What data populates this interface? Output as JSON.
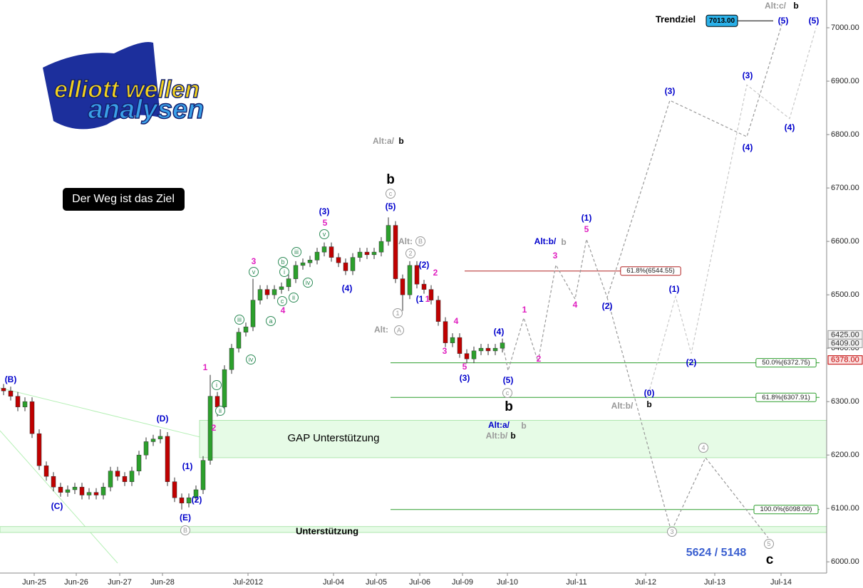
{
  "chart_data": {
    "type": "candlestick",
    "xlim": [
      -0.5,
      115.5
    ],
    "ylim": [
      5979,
      7052
    ],
    "yticks": [
      {
        "value": 6000,
        "label": "6000.00"
      },
      {
        "value": 6100,
        "label": "6100.00"
      },
      {
        "value": 6200,
        "label": "6200.00"
      },
      {
        "value": 6300,
        "label": "6300.00"
      },
      {
        "value": 6400,
        "label": "6400.00"
      },
      {
        "value": 6500,
        "label": "6500.00"
      },
      {
        "value": 6600,
        "label": "6600.00"
      },
      {
        "value": 6700,
        "label": "6700.00"
      },
      {
        "value": 6800,
        "label": "6800.00"
      },
      {
        "value": 6900,
        "label": "6900.00"
      },
      {
        "value": 7000,
        "label": "7000.00"
      }
    ],
    "xticks": [
      {
        "value": 4.3,
        "label": "Jun-25"
      },
      {
        "value": 10.2,
        "label": "Jun-26"
      },
      {
        "value": 16.3,
        "label": "Jun-27"
      },
      {
        "value": 22.3,
        "label": "Jun-28"
      },
      {
        "value": 34.3,
        "label": "Jul-2012"
      },
      {
        "value": 46.3,
        "label": "Jul-04"
      },
      {
        "value": 52.3,
        "label": "Jul-05"
      },
      {
        "value": 58.4,
        "label": "Jul-06"
      },
      {
        "value": 64.4,
        "label": "Jul-09"
      },
      {
        "value": 70.7,
        "label": "Jul-10"
      },
      {
        "value": 80.4,
        "label": "Jul-11"
      },
      {
        "value": 90.1,
        "label": "Jul-12"
      },
      {
        "value": 99.8,
        "label": "Jul-13"
      },
      {
        "value": 109.1,
        "label": "Jul-14"
      }
    ],
    "up_color": "#2ca02c",
    "down_color": "#c00000",
    "candles": [
      [
        6325,
        6333,
        6312,
        6320
      ],
      [
        6320,
        6328,
        6302,
        6310
      ],
      [
        6310,
        6318,
        6282,
        6290
      ],
      [
        6290,
        6308,
        6282,
        6300
      ],
      [
        6300,
        6308,
        6232,
        6240
      ],
      [
        6240,
        6248,
        6172,
        6180
      ],
      [
        6180,
        6188,
        6152,
        6160
      ],
      [
        6160,
        6168,
        6132,
        6140
      ],
      [
        6140,
        6148,
        6122,
        6130
      ],
      [
        6130,
        6143,
        6122,
        6135
      ],
      [
        6135,
        6148,
        6127,
        6140
      ],
      [
        6140,
        6148,
        6117,
        6125
      ],
      [
        6125,
        6138,
        6117,
        6130
      ],
      [
        6130,
        6138,
        6117,
        6125
      ],
      [
        6125,
        6148,
        6117,
        6140
      ],
      [
        6140,
        6178,
        6132,
        6170
      ],
      [
        6170,
        6178,
        6152,
        6160
      ],
      [
        6160,
        6168,
        6142,
        6150
      ],
      [
        6150,
        6178,
        6142,
        6170
      ],
      [
        6170,
        6208,
        6162,
        6200
      ],
      [
        6200,
        6233,
        6192,
        6225
      ],
      [
        6225,
        6238,
        6217,
        6230
      ],
      [
        6230,
        6248,
        6222,
        6235
      ],
      [
        6235,
        6243,
        6142,
        6150
      ],
      [
        6150,
        6158,
        6112,
        6120
      ],
      [
        6120,
        6128,
        6098,
        6110
      ],
      [
        6110,
        6128,
        6102,
        6120
      ],
      [
        6120,
        6143,
        6112,
        6135
      ],
      [
        6135,
        6198,
        6127,
        6190
      ],
      [
        6190,
        6350,
        6182,
        6310
      ],
      [
        6310,
        6318,
        6272,
        6290
      ],
      [
        6290,
        6368,
        6282,
        6360
      ],
      [
        6360,
        6408,
        6352,
        6400
      ],
      [
        6400,
        6438,
        6392,
        6430
      ],
      [
        6430,
        6448,
        6422,
        6440
      ],
      [
        6440,
        6530,
        6432,
        6490
      ],
      [
        6490,
        6518,
        6482,
        6510
      ],
      [
        6510,
        6518,
        6492,
        6500
      ],
      [
        6500,
        6518,
        6492,
        6510
      ],
      [
        6510,
        6523,
        6502,
        6515
      ],
      [
        6515,
        6538,
        6507,
        6530
      ],
      [
        6530,
        6563,
        6522,
        6555
      ],
      [
        6555,
        6568,
        6547,
        6560
      ],
      [
        6560,
        6573,
        6552,
        6565
      ],
      [
        6565,
        6588,
        6557,
        6580
      ],
      [
        6580,
        6598,
        6572,
        6590
      ],
      [
        6590,
        6598,
        6562,
        6570
      ],
      [
        6570,
        6578,
        6552,
        6560
      ],
      [
        6560,
        6568,
        6537,
        6545
      ],
      [
        6545,
        6578,
        6537,
        6570
      ],
      [
        6570,
        6588,
        6562,
        6580
      ],
      [
        6580,
        6588,
        6567,
        6575
      ],
      [
        6575,
        6588,
        6567,
        6580
      ],
      [
        6580,
        6608,
        6572,
        6600
      ],
      [
        6600,
        6645,
        6592,
        6630
      ],
      [
        6630,
        6638,
        6522,
        6530
      ],
      [
        6530,
        6538,
        6470,
        6500
      ],
      [
        6500,
        6563,
        6492,
        6555
      ],
      [
        6555,
        6563,
        6512,
        6520
      ],
      [
        6520,
        6528,
        6502,
        6510
      ],
      [
        6510,
        6518,
        6482,
        6490
      ],
      [
        6490,
        6498,
        6442,
        6450
      ],
      [
        6450,
        6458,
        6402,
        6410
      ],
      [
        6410,
        6428,
        6402,
        6420
      ],
      [
        6420,
        6428,
        6382,
        6390
      ],
      [
        6390,
        6398,
        6372,
        6380
      ],
      [
        6380,
        6403,
        6372,
        6395
      ],
      [
        6395,
        6408,
        6387,
        6400
      ],
      [
        6400,
        6408,
        6387,
        6395
      ],
      [
        6395,
        6408,
        6387,
        6400
      ],
      [
        6400,
        6418,
        6392,
        6410
      ]
    ],
    "projections": [
      {
        "color": "#999999",
        "x": [
          70,
          70.8,
          73,
          75,
          77.5,
          80.2,
          81.8,
          84.7,
          93.5,
          104.3,
          109.3
        ],
        "values": [
          6410,
          6358,
          6457,
          6375,
          6556,
          6492,
          6604,
          6495,
          6864,
          6796,
          7010
        ]
      },
      {
        "color": "#999999",
        "x": [
          84.7,
          93.7,
          98.5,
          107.3
        ],
        "values": [
          6495,
          6057,
          6195,
          6045
        ]
      },
      {
        "color": "#c8c8c8",
        "x": [
          90.3,
          94.3,
          96.5,
          104.3,
          110.3,
          114
        ],
        "values": [
          6305,
          6497,
          6390,
          6893,
          6830,
          7000
        ]
      }
    ],
    "fib_levels": [
      {
        "value": 6544.55,
        "label": "61.8%(6544.55)",
        "color": "#b22222"
      },
      {
        "value": 6372.75,
        "label": "50.0%(6372.75)",
        "color": "#2e9e2e"
      },
      {
        "value": 6307.91,
        "label": "61.8%(6307.91)",
        "color": "#2e9e2e"
      },
      {
        "value": 6098.0,
        "label": "100.0%(6098.00)",
        "color": "#2e9e2e"
      }
    ],
    "bands": [
      {
        "label": "GAP Unterstützung",
        "from": 6195,
        "to": 6265
      },
      {
        "label": "Unterstützung",
        "from": 6055,
        "to": 6066
      }
    ],
    "price_markers": [
      {
        "value": 6425,
        "label": "6425.00",
        "color": "#333333"
      },
      {
        "value": 6409,
        "label": "6409.00",
        "color": "#333333"
      },
      {
        "value": 6378,
        "label": "6378.00",
        "color": "#c00000"
      }
    ],
    "target": {
      "label": "Trendziel",
      "value": 7013,
      "value_label": "7013.00"
    },
    "note": "5624 / 5148",
    "motto": "Der Weg ist das Ziel",
    "logo": [
      "elliott wellen",
      "analysen"
    ],
    "annotations": [
      {
        "text": "(B)",
        "color": "#0000cc"
      },
      {
        "text": "(C)",
        "color": "#0000cc"
      },
      {
        "text": "(D)",
        "color": "#0000cc"
      },
      {
        "text": "(E)",
        "color": "#0000cc"
      },
      {
        "text": "(1)",
        "color": "#0000cc"
      },
      {
        "text": "(2)",
        "color": "#0000cc"
      },
      {
        "text": "1",
        "color": "#e020c0"
      },
      {
        "text": "2",
        "color": "#e020c0"
      },
      {
        "text": "3",
        "color": "#e020c0"
      },
      {
        "text": "4",
        "color": "#e020c0"
      },
      {
        "text": "5",
        "color": "#e020c0"
      },
      {
        "text": "(3)",
        "color": "#0000cc"
      },
      {
        "text": "(4)",
        "color": "#0000cc"
      },
      {
        "text": "(5)",
        "color": "#0000cc"
      },
      {
        "text": "b",
        "color": "#000000",
        "size": "large"
      },
      {
        "text": "Alt:a/",
        "color": "#999999"
      },
      {
        "text": "b",
        "color": "#000000"
      },
      {
        "text": "(2)",
        "color": "#0000cc"
      },
      {
        "text": "2",
        "color": "#e020c0"
      },
      {
        "text": "(1",
        "color": "#0000cc"
      },
      {
        "text": "1",
        "color": "#e020c0"
      },
      {
        "text": "4",
        "color": "#e020c0"
      },
      {
        "text": "3",
        "color": "#e020c0"
      },
      {
        "text": "5",
        "color": "#e020c0"
      },
      {
        "text": "(3)",
        "color": "#0000cc"
      },
      {
        "text": "(4)",
        "color": "#0000cc"
      },
      {
        "text": "(5)",
        "color": "#0000cc"
      },
      {
        "text": "b",
        "color": "#000000",
        "size": "large"
      },
      {
        "text": "1",
        "color": "#e020c0"
      },
      {
        "text": "2",
        "color": "#e020c0"
      },
      {
        "text": "3",
        "color": "#e020c0"
      },
      {
        "text": "4",
        "color": "#e020c0"
      },
      {
        "text": "(1)",
        "color": "#0000cc"
      },
      {
        "text": "5",
        "color": "#e020c0"
      },
      {
        "text": "(2)",
        "color": "#0000cc"
      },
      {
        "text": "Alt:b/",
        "color": "#0000cc"
      },
      {
        "text": "b",
        "color": "#999999"
      },
      {
        "text": "(3)",
        "color": "#0000cc"
      },
      {
        "text": "(4)",
        "color": "#0000cc"
      },
      {
        "text": "(5)",
        "color": "#0000cc"
      },
      {
        "text": "(3)",
        "color": "#0000cc"
      },
      {
        "text": "(4)",
        "color": "#0000cc"
      },
      {
        "text": "(5)",
        "color": "#0000cc"
      },
      {
        "text": "(1)",
        "color": "#0000cc"
      },
      {
        "text": "(2)",
        "color": "#0000cc"
      },
      {
        "text": "(0)",
        "color": "#0000cc"
      },
      {
        "text": "Alt:b/",
        "color": "#999999"
      },
      {
        "text": "b",
        "color": "#000000"
      },
      {
        "text": "Alt:a/",
        "color": "#0000cc"
      },
      {
        "text": "b",
        "color": "#999999"
      },
      {
        "text": "Alt:b/",
        "color": "#999999"
      },
      {
        "text": "b",
        "color": "#000000"
      },
      {
        "text": "Alt:",
        "color": "#999999"
      },
      {
        "text": "Alt:",
        "color": "#999999"
      },
      {
        "text": "c",
        "color": "#000000",
        "size": "large"
      },
      {
        "text": "Alt:c/",
        "color": "#999999"
      },
      {
        "text": "b",
        "color": "#000000"
      },
      {
        "text": "c",
        "color": "#999999",
        "circled": true
      },
      {
        "text": "B",
        "color": "#999999",
        "circled": true
      },
      {
        "text": "2",
        "color": "#999999",
        "circled": true
      },
      {
        "text": "1",
        "color": "#999999",
        "circled": true
      },
      {
        "text": "A",
        "color": "#999999",
        "circled": true
      },
      {
        "text": "c",
        "color": "#999999",
        "circled": true
      },
      {
        "text": "B",
        "color": "#999999",
        "circled": true
      },
      {
        "text": "4",
        "color": "#999999",
        "circled": true
      },
      {
        "text": "3",
        "color": "#999999",
        "circled": true
      },
      {
        "text": "5",
        "color": "#999999",
        "circled": true
      },
      {
        "text": "v",
        "color": "#2e8b57",
        "circled": true
      },
      {
        "text": "iii",
        "color": "#2e8b57",
        "circled": true
      },
      {
        "text": "b",
        "color": "#2e8b57",
        "circled": true
      },
      {
        "text": "i",
        "color": "#2e8b57",
        "circled": true
      },
      {
        "text": "c",
        "color": "#2e8b57",
        "circled": true
      },
      {
        "text": "ii",
        "color": "#2e8b57",
        "circled": true
      },
      {
        "text": "iv",
        "color": "#2e8b57",
        "circled": true
      },
      {
        "text": "a",
        "color": "#2e8b57",
        "circled": true
      },
      {
        "text": "v",
        "color": "#2e8b57",
        "circled": true
      },
      {
        "text": "iii",
        "color": "#2e8b57",
        "circled": true
      },
      {
        "text": "iv",
        "color": "#2e8b57",
        "circled": true
      },
      {
        "text": "i",
        "color": "#2e8b57",
        "circled": true
      },
      {
        "text": "ii",
        "color": "#2e8b57",
        "circled": true
      }
    ]
  }
}
